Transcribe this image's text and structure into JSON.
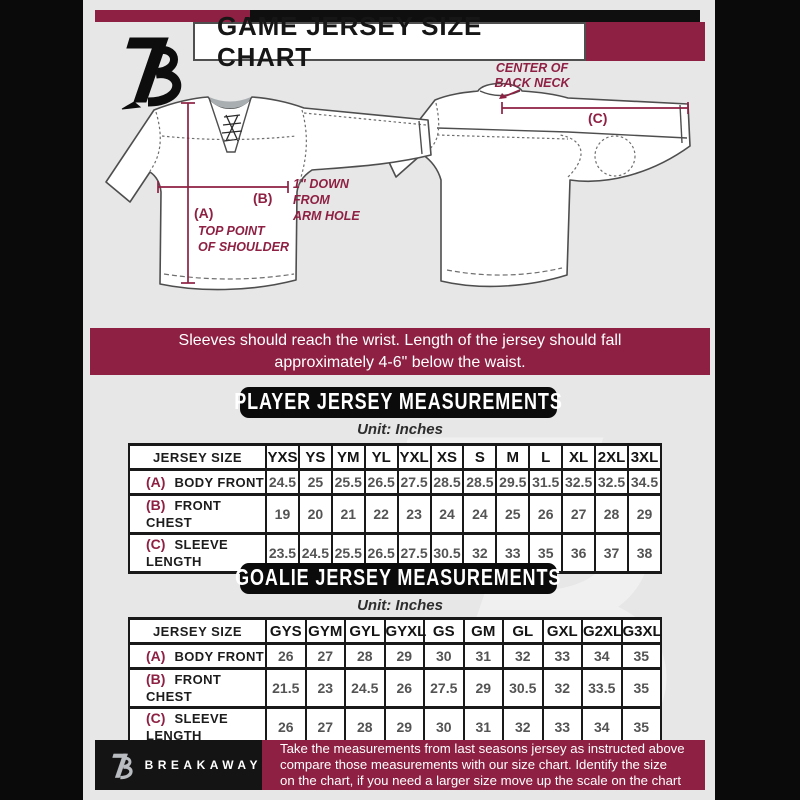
{
  "header": {
    "title": "GAME JERSEY SIZE CHART"
  },
  "diagram": {
    "front": {
      "a_key": "(A)",
      "a_line1": "TOP POINT",
      "a_line2": "OF SHOULDER",
      "b_key": "(B)",
      "b_line1": "1\" DOWN",
      "b_line2": "FROM",
      "b_line3": "ARM HOLE"
    },
    "back": {
      "c_key": "(C)",
      "c_line1": "CENTER OF",
      "c_line2": "BACK NECK"
    }
  },
  "notice": {
    "line1": "Sleeves should reach the wrist. Length of the jersey should fall",
    "line2": "approximately 4-6\" below the waist."
  },
  "player_table": {
    "section_title": "PLAYER JERSEY MEASUREMENTS",
    "unit_label": "Unit: Inches",
    "size_header": "JERSEY SIZE",
    "sizes": [
      "YXS",
      "YS",
      "YM",
      "YL",
      "YXL",
      "XS",
      "S",
      "M",
      "L",
      "XL",
      "2XL",
      "3XL"
    ],
    "rows": [
      {
        "key": "(A)",
        "label": "BODY FRONT",
        "values": [
          "24.5",
          "25",
          "25.5",
          "26.5",
          "27.5",
          "28.5",
          "28.5",
          "29.5",
          "31.5",
          "32.5",
          "32.5",
          "34.5"
        ]
      },
      {
        "key": "(B)",
        "label": "FRONT CHEST",
        "values": [
          "19",
          "20",
          "21",
          "22",
          "23",
          "24",
          "24",
          "25",
          "26",
          "27",
          "28",
          "29"
        ]
      },
      {
        "key": "(C)",
        "label": "SLEEVE LENGTH",
        "values": [
          "23.5",
          "24.5",
          "25.5",
          "26.5",
          "27.5",
          "30.5",
          "32",
          "33",
          "35",
          "36",
          "37",
          "38"
        ]
      }
    ]
  },
  "goalie_table": {
    "section_title": "GOALIE JERSEY MEASUREMENTS",
    "unit_label": "Unit: Inches",
    "size_header": "JERSEY SIZE",
    "sizes": [
      "GYS",
      "GYM",
      "GYL",
      "GYXL",
      "GS",
      "GM",
      "GL",
      "GXL",
      "G2XL",
      "G3XL"
    ],
    "rows": [
      {
        "key": "(A)",
        "label": "BODY FRONT",
        "values": [
          "26",
          "27",
          "28",
          "29",
          "30",
          "31",
          "32",
          "33",
          "34",
          "35"
        ]
      },
      {
        "key": "(B)",
        "label": "FRONT CHEST",
        "values": [
          "21.5",
          "23",
          "24.5",
          "26",
          "27.5",
          "29",
          "30.5",
          "32",
          "33.5",
          "35"
        ]
      },
      {
        "key": "(C)",
        "label": "SLEEVE LENGTH",
        "values": [
          "26",
          "27",
          "28",
          "29",
          "30",
          "31",
          "32",
          "33",
          "34",
          "35"
        ]
      }
    ]
  },
  "footer": {
    "brand": "BREAKAWAY",
    "line1": "Take the measurements from last seasons jersey as instructed above",
    "line2": "compare those measurements  with our size chart. Identify the size",
    "line3": "on the chart, if you need a larger size move up the scale on the chart"
  },
  "colors": {
    "maroon": "#8e2043",
    "black": "#0d0d0d",
    "background": "#e7e7e8"
  }
}
